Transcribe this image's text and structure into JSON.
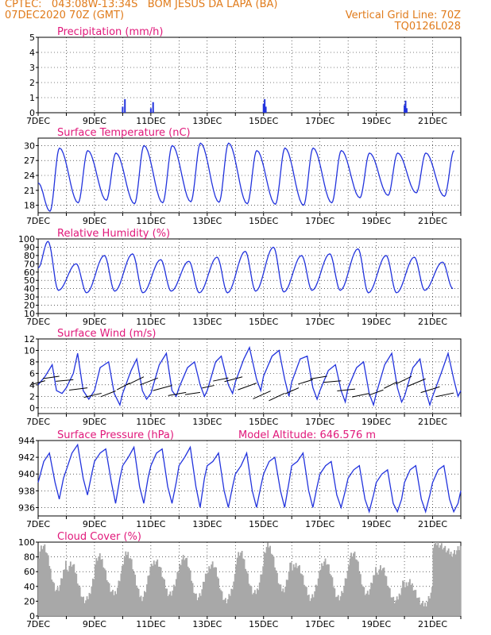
{
  "header": {
    "line1_left": "CPTEC:   043:08W-13:34S   BOM JESUS DA LAPA (BA)",
    "line2_left": "07DEC2020 70Z (GMT)",
    "line2_right": "Vertical Grid Line: 70Z",
    "line3_right": "TQ0126L028"
  },
  "colors": {
    "header": "#e07b1b",
    "panel_title": "#e0187a",
    "line": "#2233dd",
    "cloud": "#a8a8a8",
    "grid": "#000000"
  },
  "chart_data": [
    {
      "id": "precip",
      "type": "bar",
      "title": "Precipitation (mm/h)",
      "ylim": [
        0,
        5
      ],
      "yticks": [
        0,
        1,
        2,
        3,
        4,
        5
      ],
      "x_tick_labels": [
        "7DEC",
        "9DEC",
        "11DEC",
        "13DEC",
        "15DEC",
        "17DEC",
        "19DEC",
        "21DEC"
      ],
      "x_range_days": [
        0,
        15
      ],
      "x": [
        3.0,
        3.08,
        4.0,
        4.08,
        8.0,
        8.04,
        8.08,
        13.0,
        13.04,
        13.08
      ],
      "values": [
        0.4,
        0.9,
        0.3,
        0.7,
        0.6,
        0.9,
        0.4,
        0.5,
        0.8,
        0.3
      ]
    },
    {
      "id": "temp",
      "type": "line",
      "title": "Surface Temperature (nC)",
      "ylim": [
        16.5,
        31.5
      ],
      "yticks": [
        18,
        21,
        24,
        27,
        30
      ],
      "x_tick_labels": [
        "7DEC",
        "9DEC",
        "11DEC",
        "13DEC",
        "15DEC",
        "17DEC",
        "19DEC",
        "21DEC"
      ],
      "x_range_days": [
        0,
        15
      ],
      "min_time": 0.42,
      "max_time": 0.76,
      "mins": [
        16.8,
        18.5,
        19.0,
        18.3,
        18.5,
        18.7,
        18.6,
        18.3,
        18.2,
        18.0,
        18.5,
        19.5,
        20.0,
        20.5,
        19.8,
        20.5
      ],
      "maxs": [
        29.5,
        29.0,
        28.5,
        30.0,
        30.0,
        30.5,
        30.5,
        29.0,
        29.5,
        29.5,
        29.0,
        28.5,
        28.5,
        28.5,
        29.0
      ],
      "start": 22.5
    },
    {
      "id": "rh",
      "type": "line",
      "title": "Relative Humidity (%)",
      "ylim": [
        10,
        100
      ],
      "yticks": [
        10,
        20,
        30,
        40,
        50,
        60,
        70,
        80,
        90,
        100
      ],
      "x_tick_labels": [
        "7DEC",
        "9DEC",
        "11DEC",
        "13DEC",
        "15DEC",
        "17DEC",
        "19DEC",
        "21DEC"
      ],
      "x_range_days": [
        0,
        15
      ],
      "min_time": 0.72,
      "max_time": 0.35,
      "maxs": [
        97,
        70,
        80,
        82,
        75,
        73,
        78,
        85,
        90,
        80,
        82,
        88,
        80,
        78,
        72
      ],
      "mins": [
        38,
        35,
        37,
        35,
        37,
        35,
        35,
        37,
        36,
        38,
        38,
        35,
        35,
        38,
        40
      ],
      "start": 65
    },
    {
      "id": "wind",
      "type": "line",
      "title": "Surface Wind (m/s)",
      "ylim": [
        -1,
        12
      ],
      "yticks": [
        0,
        2,
        4,
        6,
        8,
        10,
        12
      ],
      "x_tick_labels": [
        "7DEC",
        "9DEC",
        "11DEC",
        "13DEC",
        "15DEC",
        "17DEC",
        "19DEC",
        "21DEC"
      ],
      "x_range_days": [
        0,
        15
      ],
      "x": [
        0,
        0.25,
        0.5,
        0.65,
        0.85,
        1.0,
        1.25,
        1.4,
        1.6,
        1.8,
        2.0,
        2.2,
        2.5,
        2.7,
        2.9,
        3.0,
        3.3,
        3.5,
        3.7,
        3.85,
        4.0,
        4.3,
        4.55,
        4.75,
        4.9,
        5.0,
        5.3,
        5.55,
        5.75,
        5.9,
        6.0,
        6.3,
        6.5,
        6.75,
        6.9,
        7.0,
        7.3,
        7.5,
        7.75,
        7.9,
        8.0,
        8.3,
        8.55,
        8.75,
        8.9,
        9.0,
        9.3,
        9.55,
        9.75,
        9.9,
        10.0,
        10.3,
        10.55,
        10.75,
        10.9,
        11.0,
        11.3,
        11.55,
        11.75,
        11.9,
        12.0,
        12.3,
        12.55,
        12.75,
        12.9,
        13.0,
        13.3,
        13.55,
        13.75,
        13.9,
        14.0,
        14.3,
        14.55,
        14.75,
        14.9,
        15.0
      ],
      "values": [
        4.0,
        5.5,
        7.5,
        3.0,
        2.5,
        3.5,
        6.0,
        9.5,
        3.0,
        1.5,
        3.0,
        7.0,
        8.0,
        2.5,
        0.5,
        2.5,
        6.5,
        8.5,
        3.0,
        1.5,
        2.5,
        7.5,
        9.5,
        3.0,
        2.0,
        3.5,
        7.0,
        8.0,
        4.0,
        2.0,
        3.0,
        8.0,
        9.0,
        4.0,
        2.5,
        4.5,
        8.5,
        10.5,
        5.0,
        3.0,
        5.5,
        9.0,
        10.0,
        5.0,
        2.0,
        4.5,
        8.5,
        9.0,
        3.5,
        1.5,
        3.0,
        6.5,
        7.5,
        3.0,
        1.0,
        3.5,
        7.0,
        8.0,
        2.5,
        0.5,
        2.5,
        7.5,
        9.5,
        3.5,
        1.0,
        2.0,
        7.0,
        8.5,
        3.0,
        0.5,
        2.0,
        6.0,
        9.5,
        5.0,
        2.0,
        3.0
      ]
    },
    {
      "id": "pressure",
      "type": "line",
      "title": "Surface Pressure (hPa)",
      "extra_label": "Model Altitude: 646.576 m",
      "ylim": [
        935,
        944
      ],
      "yticks": [
        936,
        938,
        940,
        942,
        944
      ],
      "x_tick_labels": [
        "7DEC",
        "9DEC",
        "11DEC",
        "13DEC",
        "15DEC",
        "17DEC",
        "19DEC",
        "21DEC"
      ],
      "x_range_days": [
        0,
        15
      ],
      "x": [
        0,
        0.2,
        0.4,
        0.6,
        0.75,
        0.9,
        1.0,
        1.2,
        1.4,
        1.6,
        1.75,
        1.9,
        2.0,
        2.2,
        2.4,
        2.6,
        2.75,
        2.9,
        3.0,
        3.2,
        3.4,
        3.6,
        3.75,
        3.9,
        4.0,
        4.2,
        4.4,
        4.6,
        4.75,
        4.9,
        5.0,
        5.2,
        5.4,
        5.6,
        5.75,
        5.9,
        6.0,
        6.2,
        6.4,
        6.6,
        6.75,
        6.9,
        7.0,
        7.2,
        7.4,
        7.6,
        7.75,
        7.9,
        8.0,
        8.2,
        8.4,
        8.6,
        8.75,
        8.9,
        9.0,
        9.2,
        9.4,
        9.6,
        9.75,
        9.9,
        10.0,
        10.2,
        10.4,
        10.6,
        10.75,
        10.9,
        11.0,
        11.2,
        11.4,
        11.6,
        11.75,
        11.9,
        12.0,
        12.2,
        12.4,
        12.6,
        12.75,
        12.9,
        13.0,
        13.2,
        13.4,
        13.6,
        13.75,
        13.9,
        14.0,
        14.2,
        14.4,
        14.6,
        14.75,
        14.9,
        15.0
      ],
      "values": [
        939.0,
        941.5,
        942.5,
        939.0,
        937.0,
        939.5,
        940.5,
        942.5,
        943.5,
        939.5,
        937.5,
        940.0,
        941.5,
        942.5,
        943.0,
        939.0,
        936.5,
        939.5,
        941.0,
        942.0,
        943.2,
        938.5,
        936.5,
        939.5,
        941.0,
        942.5,
        943.0,
        938.5,
        936.5,
        939.0,
        941.0,
        942.0,
        943.2,
        938.5,
        936.0,
        939.5,
        941.0,
        941.5,
        942.5,
        938.0,
        936.0,
        938.5,
        940.0,
        941.0,
        942.5,
        938.0,
        936.0,
        938.5,
        940.0,
        941.5,
        942.0,
        938.0,
        936.0,
        939.0,
        941.0,
        941.5,
        942.5,
        938.0,
        936.0,
        938.5,
        940.0,
        941.0,
        941.5,
        937.5,
        936.0,
        938.0,
        939.5,
        940.5,
        941.0,
        937.0,
        935.5,
        937.5,
        939.0,
        940.0,
        940.5,
        936.5,
        935.5,
        937.0,
        939.0,
        940.5,
        941.0,
        937.0,
        935.5,
        937.5,
        939.0,
        940.5,
        941.0,
        937.0,
        935.5,
        936.5,
        938.0
      ]
    },
    {
      "id": "cloud",
      "type": "bar",
      "title": "Cloud Cover (%)",
      "ylim": [
        0,
        100
      ],
      "yticks": [
        0,
        20,
        40,
        60,
        80,
        100
      ],
      "x_tick_labels": [
        "7DEC",
        "9DEC",
        "11DEC",
        "13DEC",
        "15DEC",
        "17DEC",
        "19DEC",
        "21DEC"
      ],
      "x_range_days": [
        0,
        15
      ],
      "daily_hi": [
        95,
        70,
        80,
        85,
        75,
        80,
        70,
        85,
        95,
        70,
        75,
        85,
        65,
        45,
        98
      ],
      "daily_lo": [
        35,
        20,
        30,
        25,
        30,
        25,
        20,
        30,
        35,
        25,
        25,
        30,
        20,
        15,
        85
      ]
    }
  ]
}
